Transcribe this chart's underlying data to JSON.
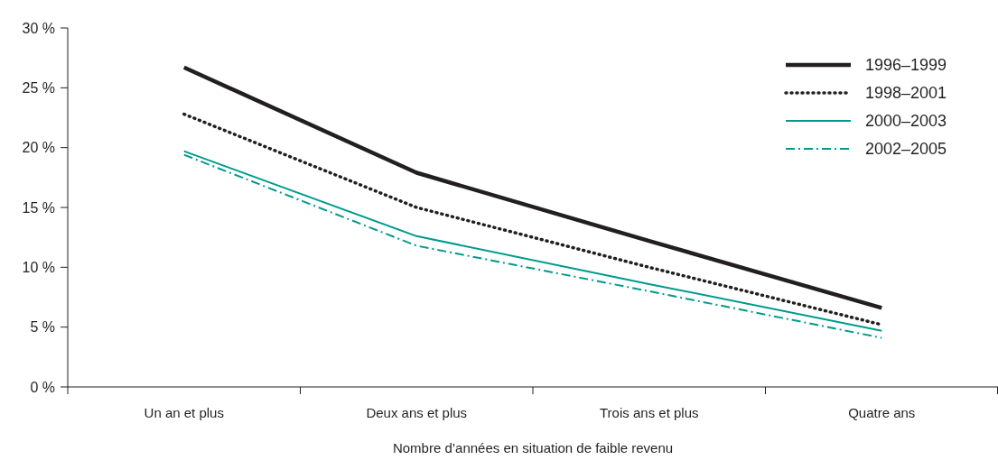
{
  "chart_data": {
    "type": "line",
    "xlabel": "Nombre d’années en situation de faible revenu",
    "categories": [
      "Un an et plus",
      "Deux ans et plus",
      "Trois ans et plus",
      "Quatre ans"
    ],
    "series": [
      {
        "name": "1996–1999",
        "color": "#231f20",
        "line_style": "solid",
        "values": [
          26.7,
          17.9,
          12.2,
          6.6
        ]
      },
      {
        "name": "1998–2001",
        "color": "#231f20",
        "line_style": "dotted",
        "values": [
          22.8,
          15.0,
          10.0,
          5.2
        ]
      },
      {
        "name": "2000–2003",
        "color": "#009b8d",
        "line_style": "solid",
        "values": [
          19.7,
          12.6,
          8.6,
          4.7
        ]
      },
      {
        "name": "2002–2005",
        "color": "#009b8d",
        "line_style": "dashdot",
        "values": [
          19.4,
          11.8,
          8.0,
          4.1
        ]
      }
    ],
    "ylim": [
      0,
      30
    ],
    "yticks": [
      {
        "value": 0,
        "label": "0 %"
      },
      {
        "value": 5,
        "label": "5 %"
      },
      {
        "value": 10,
        "label": "10 %"
      },
      {
        "value": 15,
        "label": "15 %"
      },
      {
        "value": 20,
        "label": "20 %"
      },
      {
        "value": 25,
        "label": "25 %"
      },
      {
        "value": 30,
        "label": "30 %"
      }
    ],
    "grid": false,
    "legend": "top right",
    "marker": "none"
  }
}
